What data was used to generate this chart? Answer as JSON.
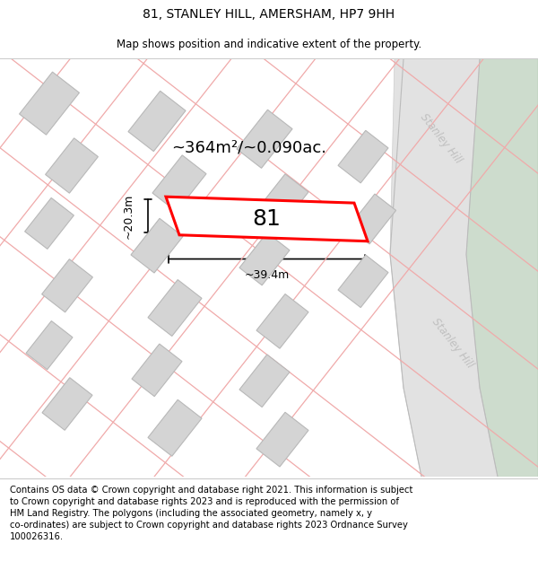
{
  "title": "81, STANLEY HILL, AMERSHAM, HP7 9HH",
  "subtitle": "Map shows position and indicative extent of the property.",
  "footer": "Contains OS data © Crown copyright and database right 2021. This information is subject\nto Crown copyright and database rights 2023 and is reproduced with the permission of\nHM Land Registry. The polygons (including the associated geometry, namely x, y\nco-ordinates) are subject to Crown copyright and database rights 2023 Ordnance Survey\n100026316.",
  "area_label": "~364m²/~0.090ac.",
  "width_label": "~39.4m",
  "height_label": "~20.3m",
  "number_label": "81",
  "map_bg": "#ffffff",
  "building_fill": "#d4d4d4",
  "building_stroke": "#b8b8b8",
  "plot_color": "#ff0000",
  "green_fill": "#cddccd",
  "road_fill": "#e2e2e2",
  "cadastral_color": "#f0aaaa",
  "road_label_color": "#c0c0c0",
  "title_fontsize": 10,
  "subtitle_fontsize": 8.5,
  "footer_fontsize": 7.2,
  "area_fontsize": 13,
  "number_fontsize": 18,
  "dim_fontsize": 9
}
